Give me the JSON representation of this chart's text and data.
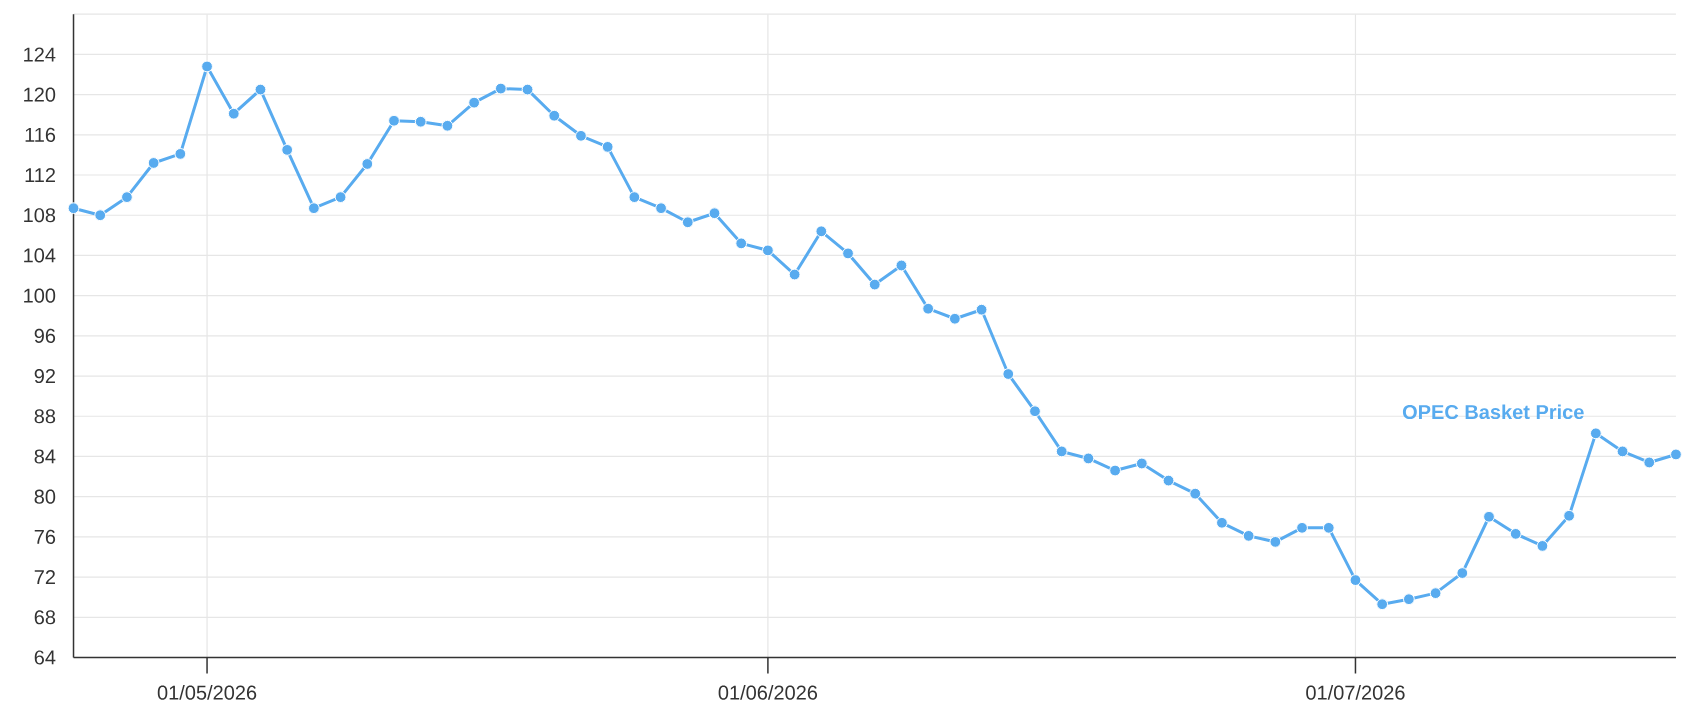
{
  "chart_data": {
    "type": "line",
    "categories": [
      null,
      null,
      null,
      null,
      null,
      "01/05/2026",
      null,
      null,
      null,
      null,
      null,
      null,
      null,
      null,
      null,
      null,
      null,
      null,
      null,
      null,
      null,
      null,
      null,
      null,
      null,
      null,
      "01/06/2026",
      null,
      null,
      null,
      null,
      null,
      null,
      null,
      null,
      null,
      null,
      null,
      null,
      null,
      null,
      null,
      null,
      null,
      null,
      null,
      null,
      null,
      "01/07/2026",
      null,
      null,
      null,
      null,
      null,
      null,
      null,
      null,
      null,
      null,
      null,
      null
    ],
    "series": [
      {
        "name": "OPEC Basket Price",
        "color": "#58abef",
        "values": [
          108.7,
          108.0,
          109.8,
          113.2,
          114.1,
          122.8,
          118.1,
          120.5,
          114.5,
          108.7,
          109.8,
          113.1,
          117.4,
          117.3,
          116.9,
          119.2,
          120.6,
          120.5,
          117.9,
          115.9,
          114.8,
          109.8,
          108.7,
          107.3,
          108.2,
          105.2,
          104.5,
          102.1,
          106.4,
          104.2,
          101.1,
          103.0,
          98.7,
          97.7,
          98.6,
          92.2,
          88.5,
          84.5,
          83.8,
          82.6,
          83.3,
          81.6,
          80.3,
          77.4,
          76.1,
          75.5,
          76.9,
          76.9,
          71.7,
          69.3,
          69.8,
          70.4,
          72.4,
          78.0,
          76.3,
          75.1,
          78.1,
          86.3,
          84.5,
          83.4,
          84.2
        ]
      }
    ],
    "ylim": [
      64,
      128
    ],
    "yticks": [
      64,
      68,
      72,
      76,
      80,
      84,
      88,
      92,
      96,
      100,
      104,
      108,
      112,
      116,
      120,
      124,
      {
        "value": 128,
        "label": null
      }
    ],
    "grid": true,
    "marker": "circle",
    "line_style": "solid"
  }
}
